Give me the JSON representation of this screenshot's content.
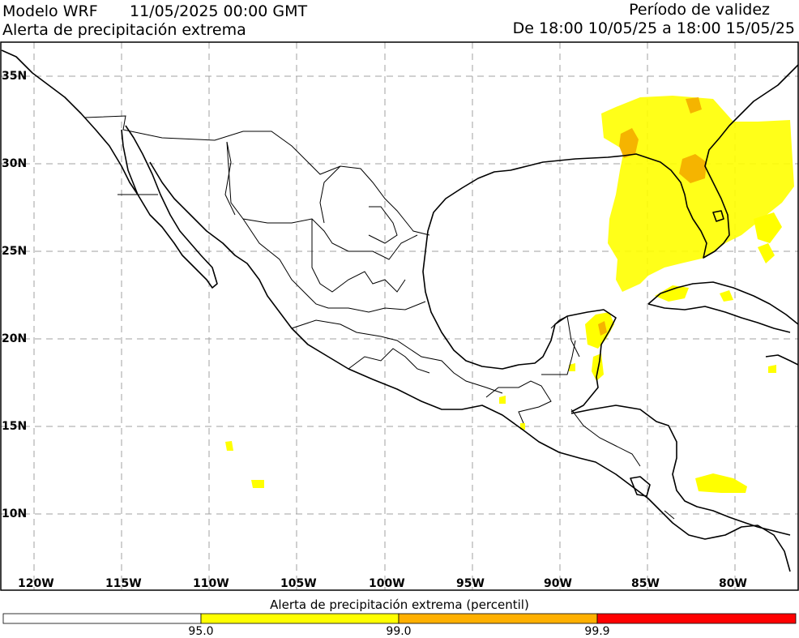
{
  "header": {
    "model": "Modelo WRF",
    "datetime": "11/05/2025 00:00 GMT",
    "product": "Alerta de precipitación extrema",
    "validity_title": "Período de validez",
    "validity_range": "De 18:00 10/05/25 a 18:00 15/05/25"
  },
  "axes": {
    "x_ticks": [
      "120W",
      "115W",
      "110W",
      "105W",
      "100W",
      "95W",
      "90W",
      "85W",
      "80W"
    ],
    "y_ticks": [
      "35N",
      "30N",
      "25N",
      "20N",
      "15N",
      "10N"
    ]
  },
  "colorbar": {
    "title": "Alerta de precipitación extrema (percentil)",
    "labels": [
      "95.0",
      "99.0",
      "99.9"
    ],
    "colors": {
      "below": "#ffffff",
      "p95": "#ffff00",
      "p99": "#ffb000",
      "p999": "#ff0000"
    }
  },
  "colors": {
    "grid": "#a0a0a0",
    "coast": "#000000",
    "alert_yellow": "#ffff00",
    "alert_orange": "#f5b400"
  }
}
